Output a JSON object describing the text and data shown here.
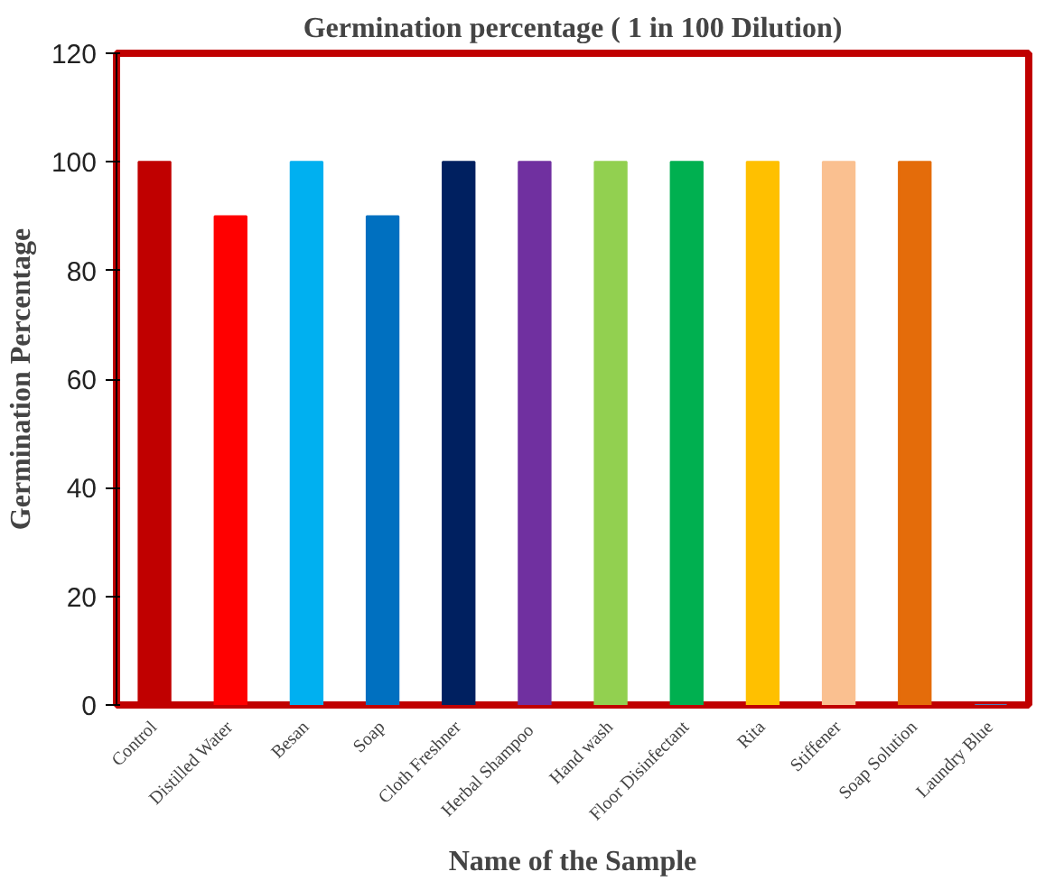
{
  "chart_data": {
    "type": "bar",
    "title": "Germination percentage ( 1 in 100 Dilution)",
    "xlabel": "Name of the Sample",
    "ylabel": "Germination Percentage",
    "categories": [
      "Control",
      "Distilled Water",
      "Besan",
      "Soap",
      "Cloth Freshner",
      "Herbal  Shampoo",
      "Hand wash",
      "Floor Disinfectant",
      "Rita",
      "Stiffener",
      "Soap Solution",
      "Laundry Blue"
    ],
    "values": [
      100,
      90,
      100,
      90,
      100,
      100,
      100,
      100,
      100,
      100,
      100,
      0
    ],
    "colors": [
      "#c00000",
      "#ff0000",
      "#00b0f0",
      "#0070c0",
      "#002060",
      "#7030a0",
      "#92d050",
      "#00b050",
      "#ffc000",
      "#fac090",
      "#e46c0a",
      "#4f81bd"
    ],
    "ylim": [
      0,
      120
    ],
    "yticks": [
      0,
      20,
      40,
      60,
      80,
      100,
      120
    ],
    "grid": false
  }
}
